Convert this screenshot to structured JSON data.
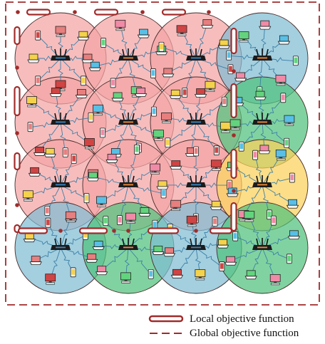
{
  "colors": {
    "red_region": "#f4a3a3",
    "blue_region": "#7fbcd2",
    "green_region": "#4fc27c",
    "yellow_region": "#fbd15a",
    "boundary": "#a12b2b",
    "link": "#3c7fa8"
  },
  "cells": [
    {
      "row": 0,
      "col": 0,
      "region": "red"
    },
    {
      "row": 0,
      "col": 1,
      "region": "red"
    },
    {
      "row": 0,
      "col": 2,
      "region": "red"
    },
    {
      "row": 0,
      "col": 3,
      "region": "blue"
    },
    {
      "row": 1,
      "col": 0,
      "region": "red"
    },
    {
      "row": 1,
      "col": 1,
      "region": "red"
    },
    {
      "row": 1,
      "col": 2,
      "region": "red"
    },
    {
      "row": 1,
      "col": 3,
      "region": "green"
    },
    {
      "row": 2,
      "col": 0,
      "region": "red"
    },
    {
      "row": 2,
      "col": 1,
      "region": "red"
    },
    {
      "row": 2,
      "col": 2,
      "region": "red"
    },
    {
      "row": 2,
      "col": 3,
      "region": "yellow"
    },
    {
      "row": 3,
      "col": 0,
      "region": "blue"
    },
    {
      "row": 3,
      "col": 1,
      "region": "green"
    },
    {
      "row": 3,
      "col": 2,
      "region": "blue"
    },
    {
      "row": 3,
      "col": 3,
      "region": "green"
    }
  ],
  "icons": {
    "router": "wifi-router-icon",
    "laptop": "laptop-icon",
    "desktop": "desktop-computer-icon",
    "phone": "smartphone-icon"
  },
  "legend": {
    "local_label": "Local objective function",
    "global_label": "Global objective function"
  }
}
